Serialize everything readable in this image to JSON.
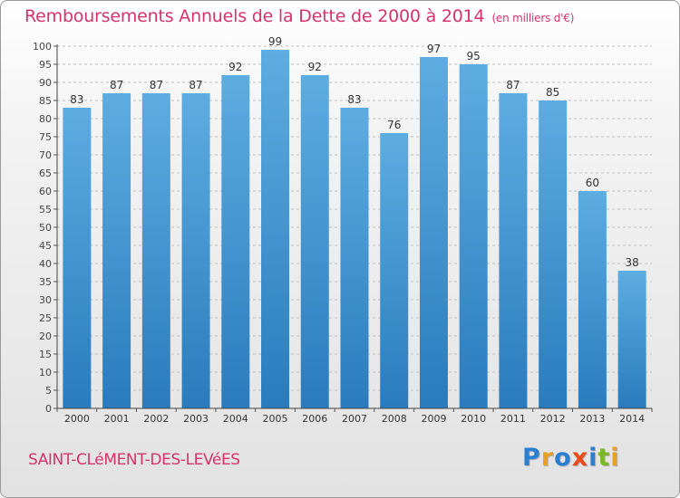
{
  "title": "Remboursements Annuels de la Dette de 2000 à 2014",
  "subtitle": "(en milliers d'€)",
  "commune": "SAINT-CLéMENT-DES-LEVéES",
  "logo": {
    "letters": [
      "P",
      "r",
      "o",
      "x",
      "i",
      "t",
      "i"
    ],
    "colors": [
      "#2b7fd1",
      "#e8a020",
      "#2b7fd1",
      "#e84a1a",
      "#2b7fd1",
      "#79b829",
      "#e8a020"
    ]
  },
  "colors": {
    "bar_top": "#5dade2",
    "bar_bottom": "#2a7bbd",
    "accent": "#d6336c",
    "grid": "#bfbfbf"
  },
  "chart_data": {
    "type": "bar",
    "categories": [
      "2000",
      "2001",
      "2002",
      "2003",
      "2004",
      "2005",
      "2006",
      "2007",
      "2008",
      "2009",
      "2010",
      "2011",
      "2012",
      "2013",
      "2014"
    ],
    "values": [
      83,
      87,
      87,
      87,
      92,
      99,
      92,
      83,
      76,
      97,
      95,
      87,
      85,
      60,
      38
    ],
    "ylim": [
      0,
      100
    ],
    "yticks": [
      0,
      5,
      10,
      15,
      20,
      25,
      30,
      35,
      40,
      45,
      50,
      55,
      60,
      65,
      70,
      75,
      80,
      85,
      90,
      95,
      100
    ],
    "grid": true,
    "grid_style": "dashed",
    "data_labels": true
  }
}
